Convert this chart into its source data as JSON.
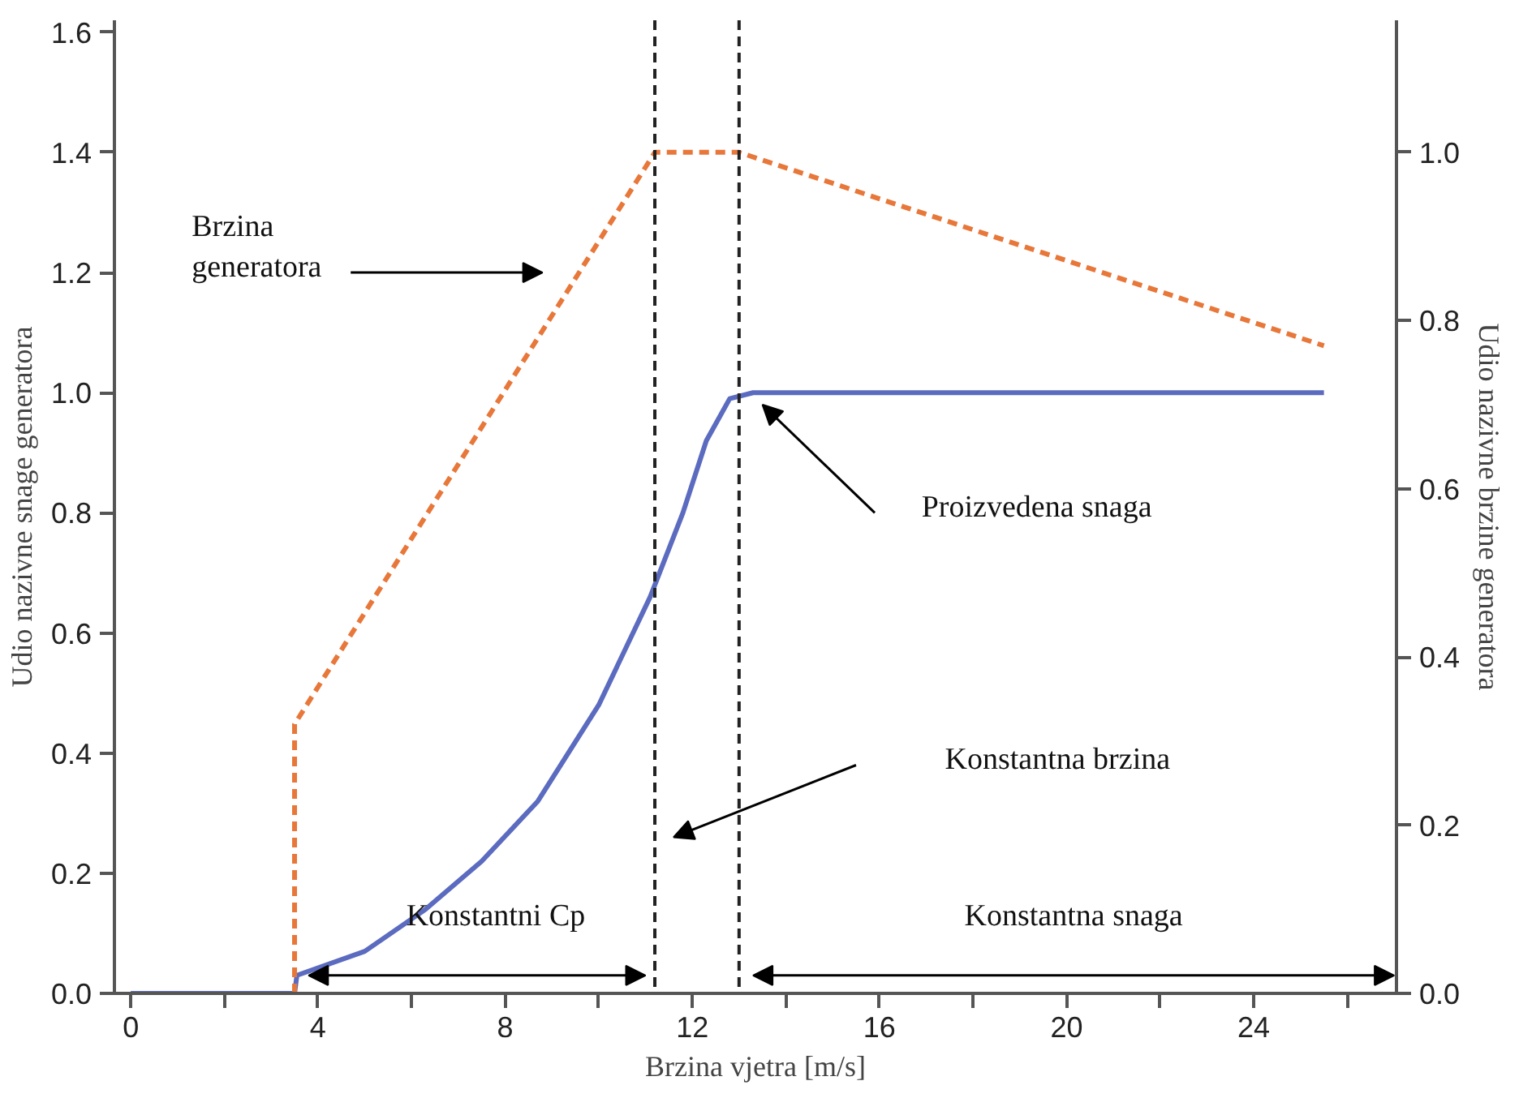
{
  "chart_data": {
    "type": "line",
    "xlabel": "Brzina vjetra [m/s]",
    "ylabel": "Udio nazivne snage generatora",
    "y2label": "Udio nazivne brzine generatora",
    "xlim": [
      -0.35,
      27.05
    ],
    "ylim": [
      0,
      1.62
    ],
    "y2lim": [
      0,
      1.157
    ],
    "xticks": [
      0,
      {
        "value": 2,
        "label": null
      },
      4,
      {
        "value": 6,
        "label": null
      },
      8,
      {
        "value": 10,
        "label": null
      },
      12,
      {
        "value": 14,
        "label": null
      },
      16,
      {
        "value": 18,
        "label": null
      },
      20,
      {
        "value": 22,
        "label": null
      },
      24,
      {
        "value": 26,
        "label": null
      }
    ],
    "yticks": [
      {
        "value": 0,
        "label": "0.0"
      },
      {
        "value": 0.2,
        "label": "0.2"
      },
      {
        "value": 0.4,
        "label": "0.4"
      },
      {
        "value": 0.6,
        "label": "0.6"
      },
      {
        "value": 0.8,
        "label": "0.8"
      },
      {
        "value": 1.0,
        "label": "1.0"
      },
      {
        "value": 1.2,
        "label": "1.2"
      },
      {
        "value": 1.4,
        "label": "1.4"
      },
      {
        "value": 1.6,
        "label": "1.6"
      }
    ],
    "y2ticks": [
      {
        "value": 0,
        "label": "0.0"
      },
      {
        "value": 0.2,
        "label": "0.2"
      },
      {
        "value": 0.4,
        "label": "0.4"
      },
      {
        "value": 0.6,
        "label": "0.6"
      },
      {
        "value": 0.8,
        "label": "0.8"
      },
      {
        "value": 1.0,
        "label": "1.0"
      }
    ],
    "grid": false,
    "series": [
      {
        "color": "#5b6bbf",
        "line_style": "solid",
        "x": [
          0,
          3.5,
          3.55,
          5,
          6.3,
          7.5,
          8.7,
          10,
          11.1,
          11.8,
          12.3,
          12.8,
          13.3,
          25.5
        ],
        "values": [
          0,
          0,
          0.03,
          0.07,
          0.14,
          0.22,
          0.32,
          0.48,
          0.66,
          0.8,
          0.92,
          0.99,
          1.0,
          1.0
        ]
      },
      {
        "color": "#e8773a",
        "line_style": "dashed",
        "axis": "y2",
        "x": [
          3.5,
          3.5,
          11.2,
          13.0,
          25.5
        ],
        "values": [
          0,
          0.32,
          1.0,
          1.0,
          0.77
        ]
      }
    ],
    "ref_lines": [
      {
        "axis": "x",
        "value": 11.2,
        "color": "#222222",
        "line_style": "dashed"
      },
      {
        "axis": "x",
        "value": 13.0,
        "color": "#222222",
        "line_style": "dashed"
      }
    ],
    "annotations": [
      "Brzina\ngeneratora",
      "Proizvedena snaga",
      "Konstantna brzina",
      "Konstantni Cp",
      "Konstantna snaga"
    ]
  }
}
